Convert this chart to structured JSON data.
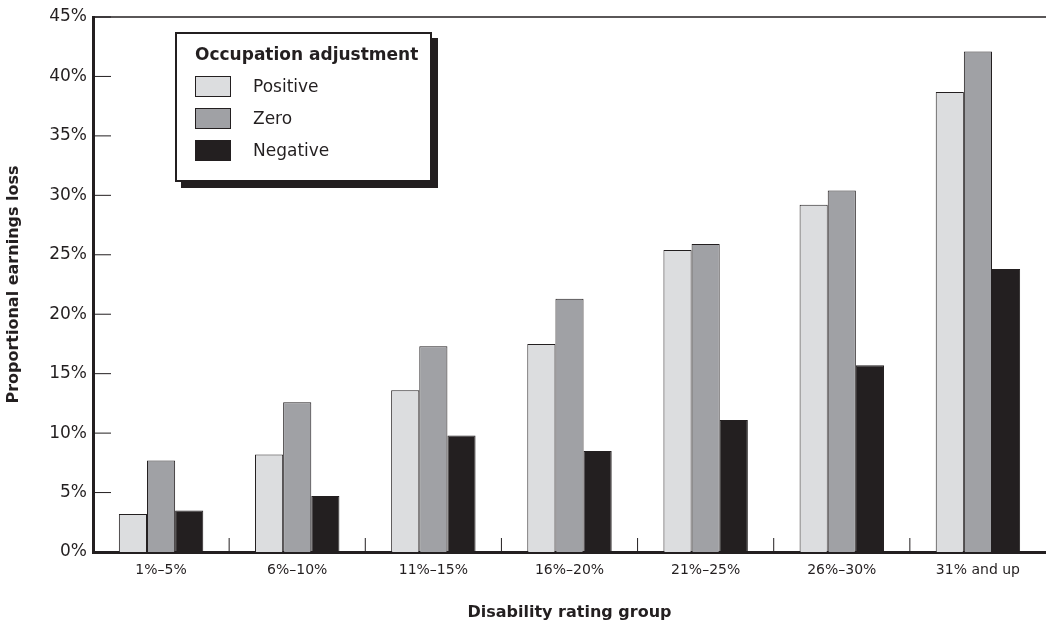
{
  "chart_data": {
    "type": "bar",
    "xlabel": "Disability rating group",
    "ylabel": "Proportional earnings loss",
    "legend_title": "Occupation adjustment",
    "legend": "top left",
    "grid": false,
    "categories": [
      "1%–5%",
      "6%–10%",
      "11%–15%",
      "16%–20%",
      "21%–25%",
      "26%–30%",
      "31% and up"
    ],
    "ylim": [
      0,
      45
    ],
    "yticks": [
      {
        "value": 0,
        "label": "0%"
      },
      {
        "value": 5,
        "label": "5%"
      },
      {
        "value": 10,
        "label": "10%"
      },
      {
        "value": 15,
        "label": "15%"
      },
      {
        "value": 20,
        "label": "20%"
      },
      {
        "value": 25,
        "label": "25%"
      },
      {
        "value": 30,
        "label": "30%"
      },
      {
        "value": 35,
        "label": "35%"
      },
      {
        "value": 40,
        "label": "40%"
      },
      {
        "value": 45,
        "label": "45%"
      }
    ],
    "series": [
      {
        "name": "Positive",
        "color": "#dcdddf",
        "values": [
          3.2,
          8.2,
          13.6,
          17.5,
          25.4,
          29.2,
          38.7
        ]
      },
      {
        "name": "Zero",
        "color": "#a0a1a5",
        "values": [
          7.7,
          12.6,
          17.3,
          21.3,
          25.9,
          30.4,
          42.1
        ]
      },
      {
        "name": "Negative",
        "color": "#231f20",
        "values": [
          3.5,
          4.7,
          9.8,
          8.5,
          11.1,
          15.7,
          23.8
        ]
      }
    ]
  }
}
